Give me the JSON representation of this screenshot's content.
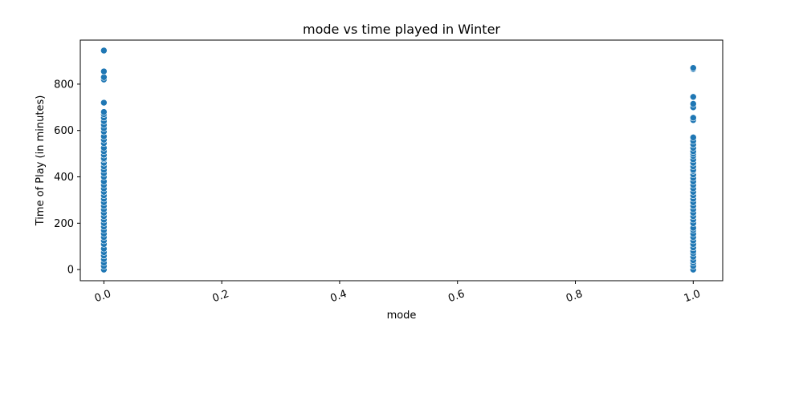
{
  "chart_data": {
    "type": "scatter",
    "title": "mode vs time played in Winter",
    "xlabel": "mode",
    "ylabel": "Time of Play (in minutes)",
    "xlim": [
      -0.04,
      1.05
    ],
    "ylim": [
      -48,
      990
    ],
    "xticks": [
      0.0,
      0.2,
      0.4,
      0.6,
      0.8,
      1.0
    ],
    "xtick_labels": [
      "0.0",
      "0.2",
      "0.4",
      "0.6",
      "0.8",
      "1.0"
    ],
    "yticks": [
      0,
      200,
      400,
      600,
      800
    ],
    "ytick_labels": [
      "0",
      "200",
      "400",
      "600",
      "800"
    ],
    "grid": false,
    "point_color": "#1f77b4",
    "series": [
      {
        "x": 0.0,
        "values": [
          0,
          15,
          30,
          45,
          60,
          75,
          90,
          110,
          125,
          140,
          155,
          170,
          185,
          200,
          215,
          230,
          245,
          260,
          275,
          290,
          305,
          320,
          335,
          350,
          365,
          380,
          400,
          415,
          430,
          445,
          460,
          475,
          480,
          495,
          510,
          525,
          545,
          560,
          575,
          595,
          610,
          625,
          640,
          655,
          670,
          680,
          720,
          820,
          830,
          855,
          945
        ]
      },
      {
        "x": 1.0,
        "values": [
          0,
          15,
          30,
          40,
          55,
          70,
          80,
          95,
          110,
          125,
          140,
          155,
          170,
          180,
          200,
          215,
          230,
          245,
          260,
          275,
          290,
          305,
          320,
          335,
          350,
          365,
          380,
          395,
          410,
          425,
          430,
          445,
          460,
          475,
          490,
          500,
          510,
          525,
          540,
          555,
          570,
          645,
          655,
          700,
          715,
          745,
          865,
          870
        ]
      }
    ]
  }
}
